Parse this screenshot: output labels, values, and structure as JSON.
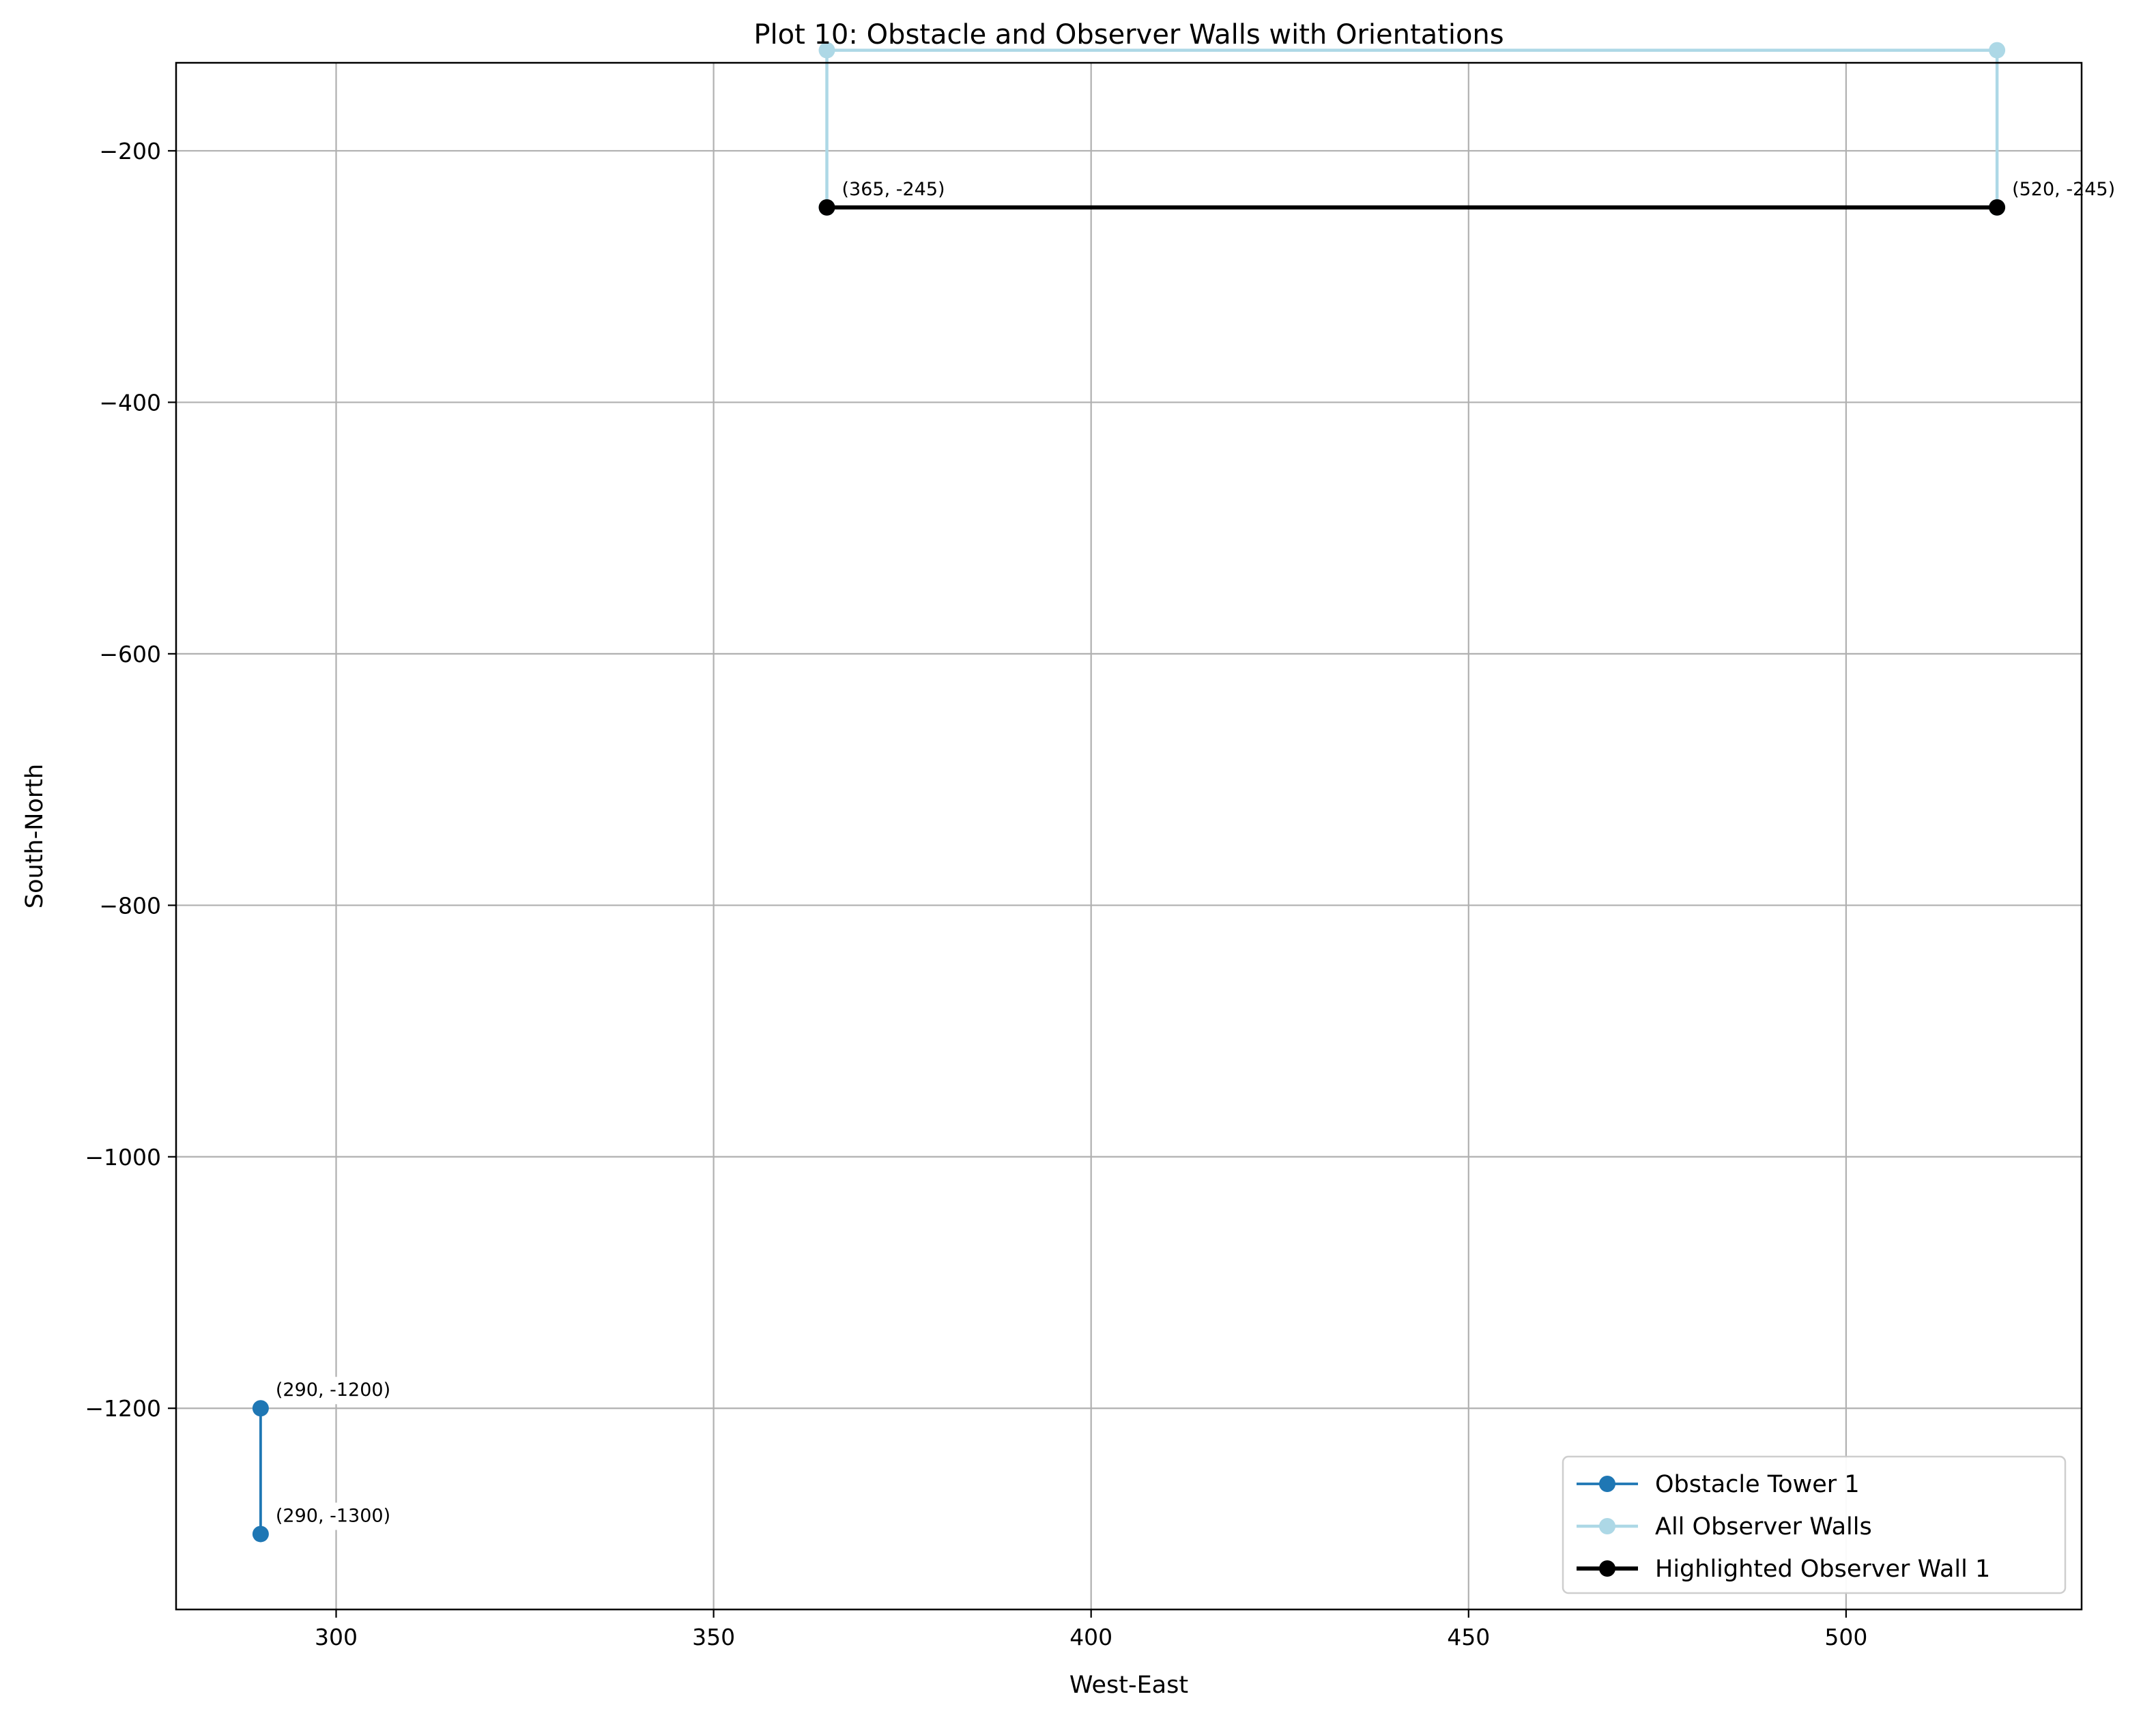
{
  "chart_data": {
    "type": "line",
    "title": "Plot 10: Obstacle and Observer Walls with Orientations",
    "xlabel": "West-East",
    "ylabel": "South-North",
    "xlim": [
      278.8,
      531.2
    ],
    "ylim": [
      -1360,
      -130
    ],
    "xticks": [
      300,
      350,
      400,
      450,
      500
    ],
    "yticks": [
      -200,
      -400,
      -600,
      -800,
      -1000,
      -1200
    ],
    "xtick_labels": [
      "300",
      "350",
      "400",
      "450",
      "500"
    ],
    "ytick_labels": [
      "−200",
      "−400",
      "−600",
      "−800",
      "−1000",
      "−1200"
    ],
    "grid": true,
    "legend_position": "lower-right",
    "series": [
      {
        "name": "Obstacle Tower 1",
        "color": "#1f77b4",
        "marker": "circle",
        "points": [
          [
            290,
            -1200
          ],
          [
            290,
            -1300
          ]
        ]
      },
      {
        "name": "All Observer Walls",
        "color": "#add8e6",
        "marker": "circle",
        "points": [
          [
            365,
            -245
          ],
          [
            365,
            -120
          ],
          [
            520,
            -120
          ],
          [
            520,
            -245
          ]
        ]
      },
      {
        "name": "Highlighted Observer Wall 1",
        "color": "#000000",
        "marker": "circle",
        "points": [
          [
            365,
            -245
          ],
          [
            520,
            -245
          ]
        ]
      }
    ],
    "annotations": [
      {
        "text": "(365, -245)",
        "x": 365,
        "y": -245
      },
      {
        "text": "(520, -245)",
        "x": 520,
        "y": -245
      },
      {
        "text": "(290, -1200)",
        "x": 290,
        "y": -1200
      },
      {
        "text": "(290, -1300)",
        "x": 290,
        "y": -1300
      }
    ]
  }
}
